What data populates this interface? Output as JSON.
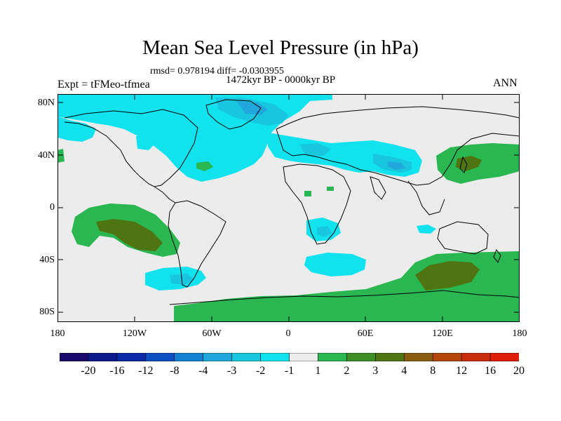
{
  "title": "Mean Sea Level Pressure (in hPa)",
  "stats": "rmsd= 0.978194 diff= -0.0303955",
  "period": "1472kyr BP - 0000kyr BP",
  "experiment": "Expt = tFMeo-tfmea",
  "season": "ANN",
  "axes": {
    "lat_labels": [
      "80N",
      "40N",
      "0",
      "40S",
      "80S"
    ],
    "lon_labels": [
      "180",
      "120W",
      "60W",
      "0",
      "60E",
      "120E",
      "180"
    ]
  },
  "colorbar": {
    "labels": [
      "-20",
      "-16",
      "-12",
      "-8",
      "-4",
      "-3",
      "-2",
      "-1",
      "1",
      "2",
      "3",
      "4",
      "8",
      "12",
      "16",
      "20"
    ],
    "colors": [
      "#1a0a6e",
      "#0c1a8c",
      "#0a2aa8",
      "#0b4fc2",
      "#1480d2",
      "#20a8dc",
      "#18c6e0",
      "#10e2ee",
      "#ececec",
      "#2ab650",
      "#3c8f24",
      "#4f7412",
      "#8a5c10",
      "#b4460c",
      "#c82e0c",
      "#dc1e0a"
    ]
  },
  "legend_colors": {
    "neutral": "#ececec",
    "neg1": "#10e2ee",
    "neg2": "#18c6e0",
    "neg3": "#20a8dc",
    "pos1": "#2ab650",
    "pos2": "#3c8f24",
    "pos3": "#4f7412"
  }
}
